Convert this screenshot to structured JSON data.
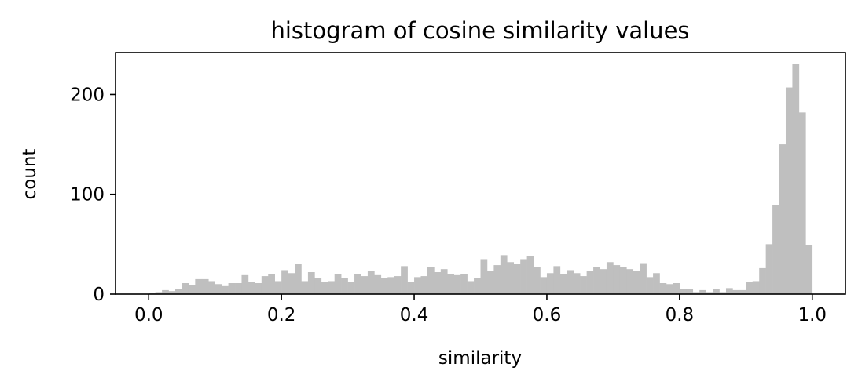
{
  "chart_data": {
    "type": "bar",
    "title": "histogram of cosine similarity values",
    "xlabel": "similarity",
    "ylabel": "count",
    "xlim": [
      -0.05,
      1.05
    ],
    "ylim": [
      0,
      242
    ],
    "xticks": [
      {
        "value": 0.0,
        "label": "0.0"
      },
      {
        "value": 0.2,
        "label": "0.2"
      },
      {
        "value": 0.4,
        "label": "0.4"
      },
      {
        "value": 0.6,
        "label": "0.6"
      },
      {
        "value": 0.8,
        "label": "0.8"
      },
      {
        "value": 1.0,
        "label": "1.0"
      }
    ],
    "yticks": [
      {
        "value": 0,
        "label": "0"
      },
      {
        "value": 100,
        "label": "100"
      },
      {
        "value": 200,
        "label": "200"
      }
    ],
    "bar_color": "#bfbfbf",
    "bin_start": 0.0,
    "bin_end": 1.0,
    "values": [
      1,
      2,
      4,
      3,
      5,
      11,
      9,
      15,
      15,
      13,
      10,
      8,
      11,
      11,
      19,
      12,
      11,
      18,
      20,
      13,
      24,
      21,
      30,
      13,
      22,
      16,
      12,
      13,
      20,
      16,
      12,
      20,
      18,
      23,
      19,
      16,
      17,
      18,
      28,
      12,
      17,
      18,
      27,
      22,
      25,
      20,
      19,
      20,
      13,
      16,
      35,
      23,
      29,
      39,
      32,
      30,
      35,
      38,
      27,
      17,
      21,
      28,
      20,
      24,
      21,
      18,
      23,
      27,
      25,
      32,
      29,
      27,
      25,
      23,
      31,
      17,
      21,
      11,
      10,
      11,
      5,
      5,
      2,
      4,
      2,
      5,
      2,
      6,
      4,
      4,
      12,
      13,
      26,
      50,
      89,
      150,
      207,
      231,
      182,
      49
    ],
    "grid": false
  }
}
